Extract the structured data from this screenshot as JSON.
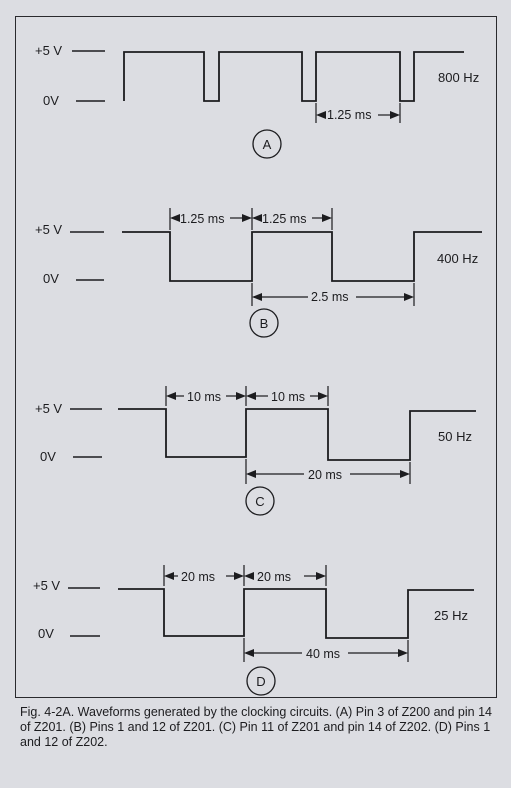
{
  "panels": [
    {
      "letter": "A",
      "frequency": "800 Hz",
      "high_label": "+5 V",
      "low_label": "0V",
      "dimensions": [
        "1.25 ms"
      ]
    },
    {
      "letter": "B",
      "frequency": "400 Hz",
      "high_label": "+5 V",
      "low_label": "0V",
      "dimensions": [
        "1.25 ms",
        "1.25 ms",
        "2.5 ms"
      ]
    },
    {
      "letter": "C",
      "frequency": "50 Hz",
      "high_label": "+5 V",
      "low_label": "0V",
      "dimensions": [
        "10 ms",
        "10 ms",
        "20 ms"
      ]
    },
    {
      "letter": "D",
      "frequency": "25 Hz",
      "high_label": "+5 V",
      "low_label": "0V",
      "dimensions": [
        "20 ms",
        "20 ms",
        "40 ms"
      ]
    }
  ],
  "caption": "Fig. 4-2A. Waveforms generated by the clocking circuits. (A) Pin 3 of Z200 and pin 14 of Z201. (B) Pins 1 and 12 of Z201. (C) Pin 11 of Z201 and pin 14 of Z202. (D) Pins 1 and 12 of Z202."
}
